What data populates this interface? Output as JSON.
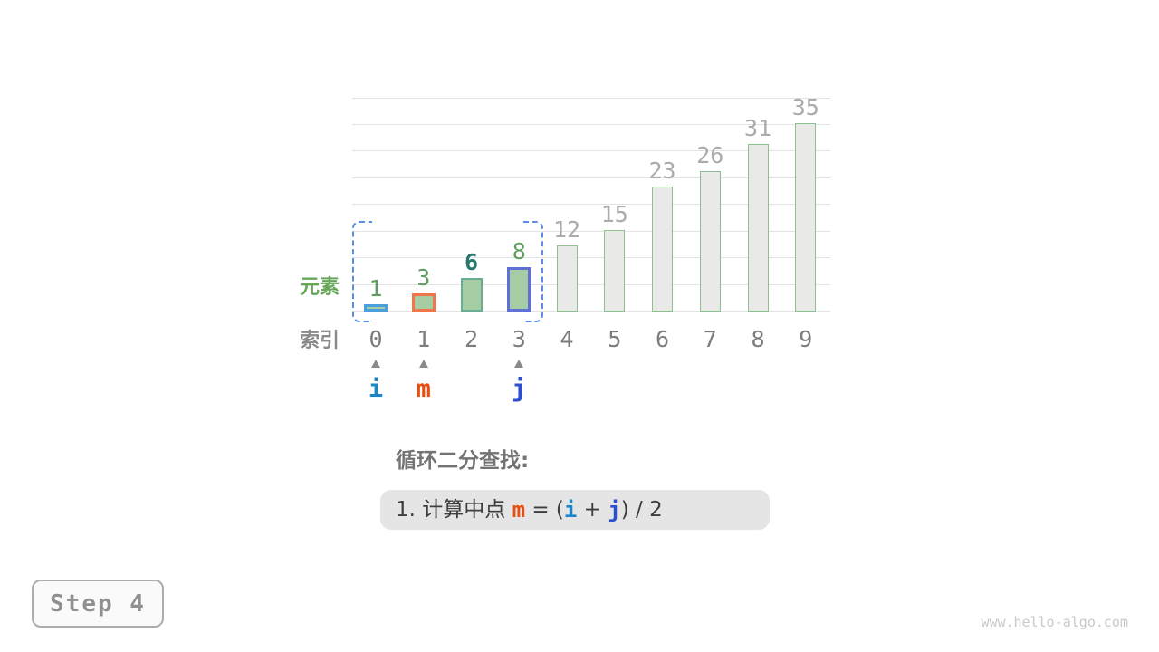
{
  "watermark": "www.hello-algo.com",
  "step_badge": {
    "label": "Step 4"
  },
  "axis_labels": {
    "element": "元素",
    "index": "索引"
  },
  "caption": {
    "title": "循环二分查找:",
    "formula": [
      {
        "text": "1. 计算中点 ",
        "color": "#3E3E3E",
        "mono": false
      },
      {
        "text": "m",
        "color": "#E84E10",
        "mono": true
      },
      {
        "text": " = (",
        "color": "#3E3E3E",
        "mono": false
      },
      {
        "text": "i",
        "color": "#1C86C9",
        "mono": true
      },
      {
        "text": " + ",
        "color": "#3E3E3E",
        "mono": false
      },
      {
        "text": "j",
        "color": "#2C4FD0",
        "mono": true
      },
      {
        "text": ") / 2",
        "color": "#3E3E3E",
        "mono": false
      }
    ]
  },
  "pointers": [
    {
      "name": "i",
      "index": 0,
      "color": "#1C86C9"
    },
    {
      "name": "m",
      "index": 1,
      "color": "#E84E10"
    },
    {
      "name": "j",
      "index": 3,
      "color": "#2C4FD0"
    }
  ],
  "search_range": {
    "from_index": 0,
    "to_index": 3,
    "dash_color": "#5B8DE8"
  },
  "chart_data": {
    "type": "bar",
    "title": "",
    "xlabel": "索引",
    "ylabel": "元素",
    "categories": [
      0,
      1,
      2,
      3,
      4,
      5,
      6,
      7,
      8,
      9
    ],
    "values": [
      1,
      3,
      6,
      8,
      12,
      15,
      23,
      26,
      31,
      35
    ],
    "ylim": [
      0,
      40
    ],
    "gridline_step": 5,
    "grid": true,
    "legend": "none",
    "bars": [
      {
        "index": 0,
        "value": 1,
        "fill": "#A6CCA4",
        "border": "#4BA0DC",
        "border_width": 3,
        "label_color": "#5F9E60",
        "label_bold": false
      },
      {
        "index": 1,
        "value": 3,
        "fill": "#A6CCA4",
        "border": "#F0764A",
        "border_width": 3,
        "label_color": "#5F9E60",
        "label_bold": false
      },
      {
        "index": 2,
        "value": 6,
        "fill": "#A6CCA4",
        "border": "#69AE94",
        "border_width": 2,
        "label_color": "#26776E",
        "label_bold": true
      },
      {
        "index": 3,
        "value": 8,
        "fill": "#A6CCA4",
        "border": "#5E70D6",
        "border_width": 3,
        "label_color": "#5F9E60",
        "label_bold": false
      },
      {
        "index": 4,
        "value": 12,
        "fill": "#E9E9E7",
        "border": "#8CC18F",
        "border_width": 1.5,
        "label_color": "#ABABAB",
        "label_bold": false
      },
      {
        "index": 5,
        "value": 15,
        "fill": "#E9E9E7",
        "border": "#8CC18F",
        "border_width": 1.5,
        "label_color": "#ABABAB",
        "label_bold": false
      },
      {
        "index": 6,
        "value": 23,
        "fill": "#E9E9E7",
        "border": "#8CC18F",
        "border_width": 1.5,
        "label_color": "#ABABAB",
        "label_bold": false
      },
      {
        "index": 7,
        "value": 26,
        "fill": "#E9E9E7",
        "border": "#8CC18F",
        "border_width": 1.5,
        "label_color": "#ABABAB",
        "label_bold": false
      },
      {
        "index": 8,
        "value": 31,
        "fill": "#E9E9E7",
        "border": "#8CC18F",
        "border_width": 1.5,
        "label_color": "#ABABAB",
        "label_bold": false
      },
      {
        "index": 9,
        "value": 35,
        "fill": "#E9E9E7",
        "border": "#8CC18F",
        "border_width": 1.5,
        "label_color": "#ABABAB",
        "label_bold": false
      }
    ],
    "colors": {
      "gridline": "#E3E3E3",
      "caret": "#8A8A8A",
      "index_text": "#7C7C7C"
    }
  }
}
